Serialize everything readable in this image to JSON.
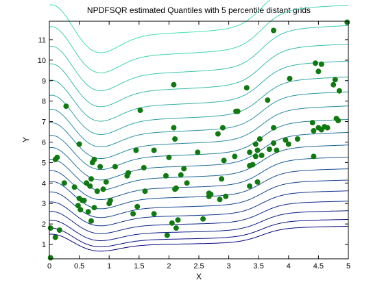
{
  "chart_data": {
    "type": "scatter",
    "title": "NPDFSQR estimated Quantiles with 5 percentile distant grids",
    "xlabel": "X",
    "ylabel": "Y",
    "xlim": [
      0,
      5
    ],
    "ylim": [
      0.3,
      11.9
    ],
    "x_ticks": [
      "0",
      "0.5",
      "1",
      "1.5",
      "2",
      "2.5",
      "3",
      "3.5",
      "4",
      "4.5",
      "5"
    ],
    "y_ticks": [
      "1",
      "2",
      "3",
      "4",
      "5",
      "6",
      "7",
      "8",
      "9",
      "10",
      "11"
    ],
    "grid": false,
    "legend": "none",
    "colors": {
      "points": "#0f7a0f",
      "contour_low": "#00007f",
      "contour_high": "#3fe0b0",
      "axes": "#000000"
    },
    "contour_levels": 19,
    "points": [
      {
        "x": 0.02,
        "y": 0.35
      },
      {
        "x": 0.02,
        "y": 1.8
      },
      {
        "x": 0.1,
        "y": 1.35
      },
      {
        "x": 0.17,
        "y": 1.7
      },
      {
        "x": 0.1,
        "y": 5.15
      },
      {
        "x": 0.13,
        "y": 5.25
      },
      {
        "x": 0.25,
        "y": 4.0
      },
      {
        "x": 0.28,
        "y": 7.75
      },
      {
        "x": 0.42,
        "y": 3.8
      },
      {
        "x": 0.48,
        "y": 2.9
      },
      {
        "x": 0.5,
        "y": 3.25
      },
      {
        "x": 0.5,
        "y": 5.9
      },
      {
        "x": 0.52,
        "y": 2.7
      },
      {
        "x": 0.55,
        "y": 3.15
      },
      {
        "x": 0.58,
        "y": 3.15
      },
      {
        "x": 0.62,
        "y": 4.0
      },
      {
        "x": 0.65,
        "y": 2.6
      },
      {
        "x": 0.68,
        "y": 3.85
      },
      {
        "x": 0.7,
        "y": 2.15
      },
      {
        "x": 0.7,
        "y": 4.2
      },
      {
        "x": 0.72,
        "y": 5.0
      },
      {
        "x": 0.75,
        "y": 5.15
      },
      {
        "x": 0.75,
        "y": 2.8
      },
      {
        "x": 0.8,
        "y": 3.6
      },
      {
        "x": 0.85,
        "y": 4.8
      },
      {
        "x": 0.9,
        "y": 3.7
      },
      {
        "x": 0.95,
        "y": 4.05
      },
      {
        "x": 1.0,
        "y": 3.0
      },
      {
        "x": 1.02,
        "y": 3.15
      },
      {
        "x": 1.1,
        "y": 4.8
      },
      {
        "x": 1.3,
        "y": 4.35
      },
      {
        "x": 1.32,
        "y": 4.5
      },
      {
        "x": 1.4,
        "y": 2.5
      },
      {
        "x": 1.45,
        "y": 5.6
      },
      {
        "x": 1.47,
        "y": 2.85
      },
      {
        "x": 1.52,
        "y": 7.55
      },
      {
        "x": 1.58,
        "y": 4.75
      },
      {
        "x": 1.6,
        "y": 3.6
      },
      {
        "x": 1.75,
        "y": 5.6
      },
      {
        "x": 1.75,
        "y": 2.5
      },
      {
        "x": 1.95,
        "y": 4.35
      },
      {
        "x": 1.97,
        "y": 1.45
      },
      {
        "x": 2.0,
        "y": 5.25
      },
      {
        "x": 2.05,
        "y": 2.05
      },
      {
        "x": 2.08,
        "y": 8.8
      },
      {
        "x": 2.08,
        "y": 6.7
      },
      {
        "x": 2.1,
        "y": 3.7
      },
      {
        "x": 2.1,
        "y": 6.15
      },
      {
        "x": 2.12,
        "y": 3.75
      },
      {
        "x": 2.12,
        "y": 1.8
      },
      {
        "x": 2.15,
        "y": 2.2
      },
      {
        "x": 2.2,
        "y": 4.4
      },
      {
        "x": 2.25,
        "y": 4.7
      },
      {
        "x": 2.3,
        "y": 4.0
      },
      {
        "x": 2.48,
        "y": 5.5
      },
      {
        "x": 2.57,
        "y": 2.25
      },
      {
        "x": 2.67,
        "y": 3.35
      },
      {
        "x": 2.67,
        "y": 3.5
      },
      {
        "x": 2.7,
        "y": 3.45
      },
      {
        "x": 2.82,
        "y": 6.4
      },
      {
        "x": 2.85,
        "y": 3.2
      },
      {
        "x": 2.88,
        "y": 4.2
      },
      {
        "x": 2.9,
        "y": 6.7
      },
      {
        "x": 2.92,
        "y": 5.1
      },
      {
        "x": 2.95,
        "y": 3.35
      },
      {
        "x": 3.1,
        "y": 5.3
      },
      {
        "x": 3.12,
        "y": 7.5
      },
      {
        "x": 3.15,
        "y": 7.5
      },
      {
        "x": 3.3,
        "y": 8.65
      },
      {
        "x": 3.35,
        "y": 3.85
      },
      {
        "x": 3.35,
        "y": 4.85
      },
      {
        "x": 3.35,
        "y": 5.5
      },
      {
        "x": 3.4,
        "y": 4.9
      },
      {
        "x": 3.45,
        "y": 5.3
      },
      {
        "x": 3.45,
        "y": 5.9
      },
      {
        "x": 3.48,
        "y": 5.6
      },
      {
        "x": 3.48,
        "y": 4.05
      },
      {
        "x": 3.52,
        "y": 6.15
      },
      {
        "x": 3.55,
        "y": 5.35
      },
      {
        "x": 3.65,
        "y": 8.05
      },
      {
        "x": 3.68,
        "y": 5.65
      },
      {
        "x": 3.75,
        "y": 11.45
      },
      {
        "x": 3.75,
        "y": 6.7
      },
      {
        "x": 3.75,
        "y": 5.95
      },
      {
        "x": 3.8,
        "y": 5.6
      },
      {
        "x": 3.95,
        "y": 6.1
      },
      {
        "x": 4.0,
        "y": 5.9
      },
      {
        "x": 4.02,
        "y": 9.1
      },
      {
        "x": 4.15,
        "y": 6.15
      },
      {
        "x": 4.4,
        "y": 6.95
      },
      {
        "x": 4.42,
        "y": 6.55
      },
      {
        "x": 4.42,
        "y": 5.3
      },
      {
        "x": 4.45,
        "y": 9.85
      },
      {
        "x": 4.5,
        "y": 9.45
      },
      {
        "x": 4.5,
        "y": 6.7
      },
      {
        "x": 4.55,
        "y": 9.8
      },
      {
        "x": 4.55,
        "y": 6.6
      },
      {
        "x": 4.6,
        "y": 6.75
      },
      {
        "x": 4.65,
        "y": 6.7
      },
      {
        "x": 4.75,
        "y": 8.8
      },
      {
        "x": 4.78,
        "y": 9.05
      },
      {
        "x": 4.8,
        "y": 7.15
      },
      {
        "x": 4.83,
        "y": 7.05
      },
      {
        "x": 4.85,
        "y": 8.5
      },
      {
        "x": 4.98,
        "y": 11.85
      }
    ]
  }
}
